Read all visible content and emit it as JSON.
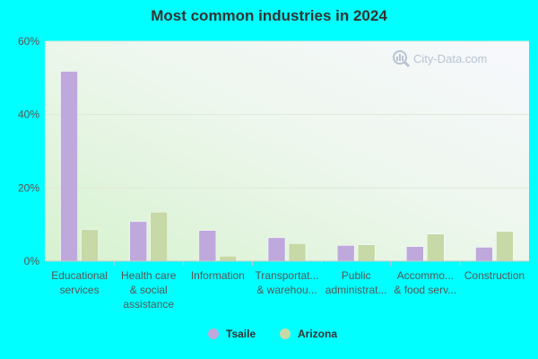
{
  "colors": {
    "background": "#00ffff",
    "tsaile": "#bfa8dc",
    "arizona": "#c6d9a6",
    "grid": "#dfe8d8",
    "axis": "#c9c9c9"
  },
  "watermark": {
    "text": "City-Data.com",
    "icon": "magnifier-chart-icon"
  },
  "chart_data": {
    "type": "bar",
    "title": "Most common industries in 2024",
    "xlabel": "",
    "ylabel": "",
    "ylim": [
      0,
      60
    ],
    "yticks": [
      0,
      20,
      40,
      60
    ],
    "ytick_labels": [
      "0%",
      "20%",
      "40%",
      "60%"
    ],
    "grid": true,
    "legend_position": "bottom",
    "categories": [
      [
        "Educational",
        "services"
      ],
      [
        "Health care",
        "& social",
        "assistance"
      ],
      [
        "Information"
      ],
      [
        "Transportat...",
        "& warehou..."
      ],
      [
        "Public",
        "administrat..."
      ],
      [
        "Accommo...",
        "& food serv..."
      ],
      [
        "Construction"
      ]
    ],
    "series": [
      {
        "name": "Tsaile",
        "values": [
          51.8,
          10.8,
          8.4,
          6.4,
          4.3,
          4.0,
          3.8
        ]
      },
      {
        "name": "Arizona",
        "values": [
          8.6,
          13.4,
          1.4,
          4.8,
          4.5,
          7.4,
          8.1
        ]
      }
    ]
  }
}
